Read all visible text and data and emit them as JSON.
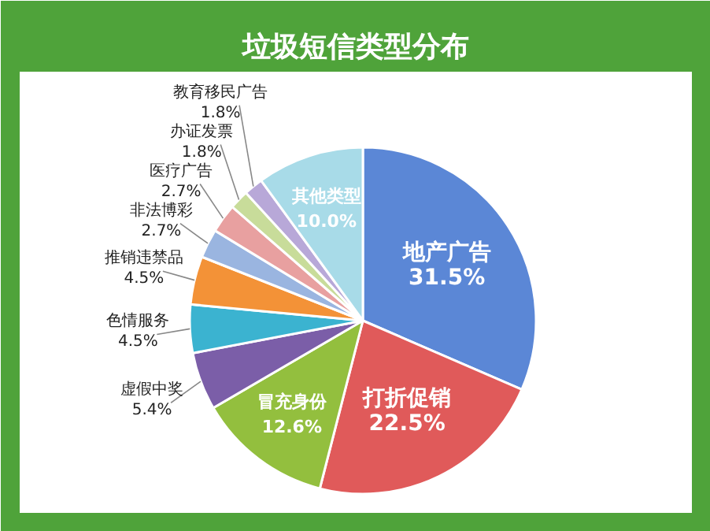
{
  "chart_data": {
    "type": "pie",
    "title": "垃圾短信类型分布",
    "categories": [
      "地产广告",
      "打折促销",
      "冒充身份",
      "虚假中奖",
      "色情服务",
      "推销违禁品",
      "非法博彩",
      "医疗广告",
      "办证发票",
      "教育移民广告",
      "其他类型"
    ],
    "values": [
      31.5,
      22.5,
      12.6,
      5.4,
      4.5,
      4.5,
      2.7,
      2.7,
      1.8,
      1.8,
      10.0
    ],
    "value_labels": [
      "31.5%",
      "22.5%",
      "12.6%",
      "5.4%",
      "4.5%",
      "4.5%",
      "2.7%",
      "2.7%",
      "1.8%",
      "1.8%",
      "10.0%"
    ],
    "colors": [
      "#5b87d6",
      "#e05a5a",
      "#93bf3e",
      "#7b5ea8",
      "#3bb3d0",
      "#f39237",
      "#9ab5e0",
      "#e8a0a0",
      "#c8dc9a",
      "#b8a8d8",
      "#a8dbe8"
    ]
  }
}
